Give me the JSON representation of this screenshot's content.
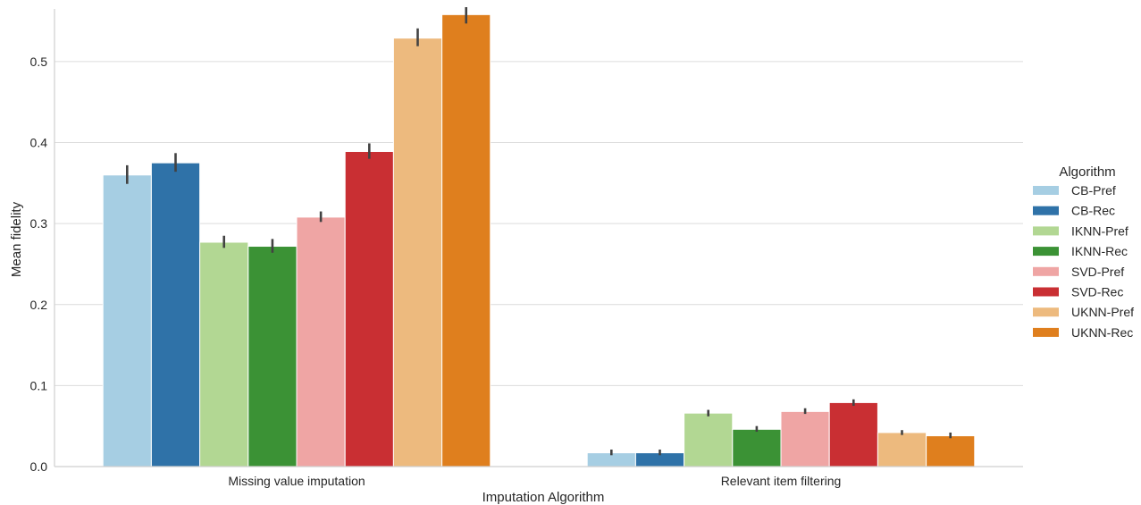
{
  "chart_data": {
    "type": "bar",
    "xlabel": "Imputation Algorithm",
    "ylabel": "Mean fidelity",
    "ylim": [
      0,
      0.565
    ],
    "yticks": [
      "0.0",
      "0.1",
      "0.2",
      "0.3",
      "0.4",
      "0.5"
    ],
    "ytick_values": [
      0,
      0.1,
      0.2,
      0.3,
      0.4,
      0.5
    ],
    "grid": true,
    "categories": [
      "Missing value imputation",
      "Relevant item filtering"
    ],
    "legend": {
      "title": "Algorithm",
      "placement": "right"
    },
    "series": [
      {
        "name": "CB-Pref",
        "color": "#a6cee3",
        "values": [
          0.36,
          0.017
        ],
        "err_low": [
          0.349,
          0.014
        ],
        "err_high": [
          0.372,
          0.021
        ]
      },
      {
        "name": "CB-Rec",
        "color": "#2f72a8",
        "values": [
          0.375,
          0.017
        ],
        "err_low": [
          0.364,
          0.014
        ],
        "err_high": [
          0.387,
          0.021
        ]
      },
      {
        "name": "IKNN-Pref",
        "color": "#b2d793",
        "values": [
          0.277,
          0.066
        ],
        "err_low": [
          0.27,
          0.062
        ],
        "err_high": [
          0.285,
          0.07
        ]
      },
      {
        "name": "IKNN-Rec",
        "color": "#3b9235",
        "values": [
          0.272,
          0.046
        ],
        "err_low": [
          0.264,
          0.043
        ],
        "err_high": [
          0.281,
          0.05
        ]
      },
      {
        "name": "SVD-Pref",
        "color": "#efa5a4",
        "values": [
          0.308,
          0.068
        ],
        "err_low": [
          0.302,
          0.065
        ],
        "err_high": [
          0.315,
          0.072
        ]
      },
      {
        "name": "SVD-Rec",
        "color": "#c92f33",
        "values": [
          0.389,
          0.079
        ],
        "err_low": [
          0.38,
          0.075
        ],
        "err_high": [
          0.399,
          0.083
        ]
      },
      {
        "name": "UKNN-Pref",
        "color": "#edba7e",
        "values": [
          0.529,
          0.042
        ],
        "err_low": [
          0.519,
          0.039
        ],
        "err_high": [
          0.541,
          0.045
        ]
      },
      {
        "name": "UKNN-Rec",
        "color": "#df7f1e",
        "values": [
          0.558,
          0.038
        ],
        "err_low": [
          0.547,
          0.035
        ],
        "err_high": [
          0.57,
          0.042
        ]
      }
    ]
  }
}
